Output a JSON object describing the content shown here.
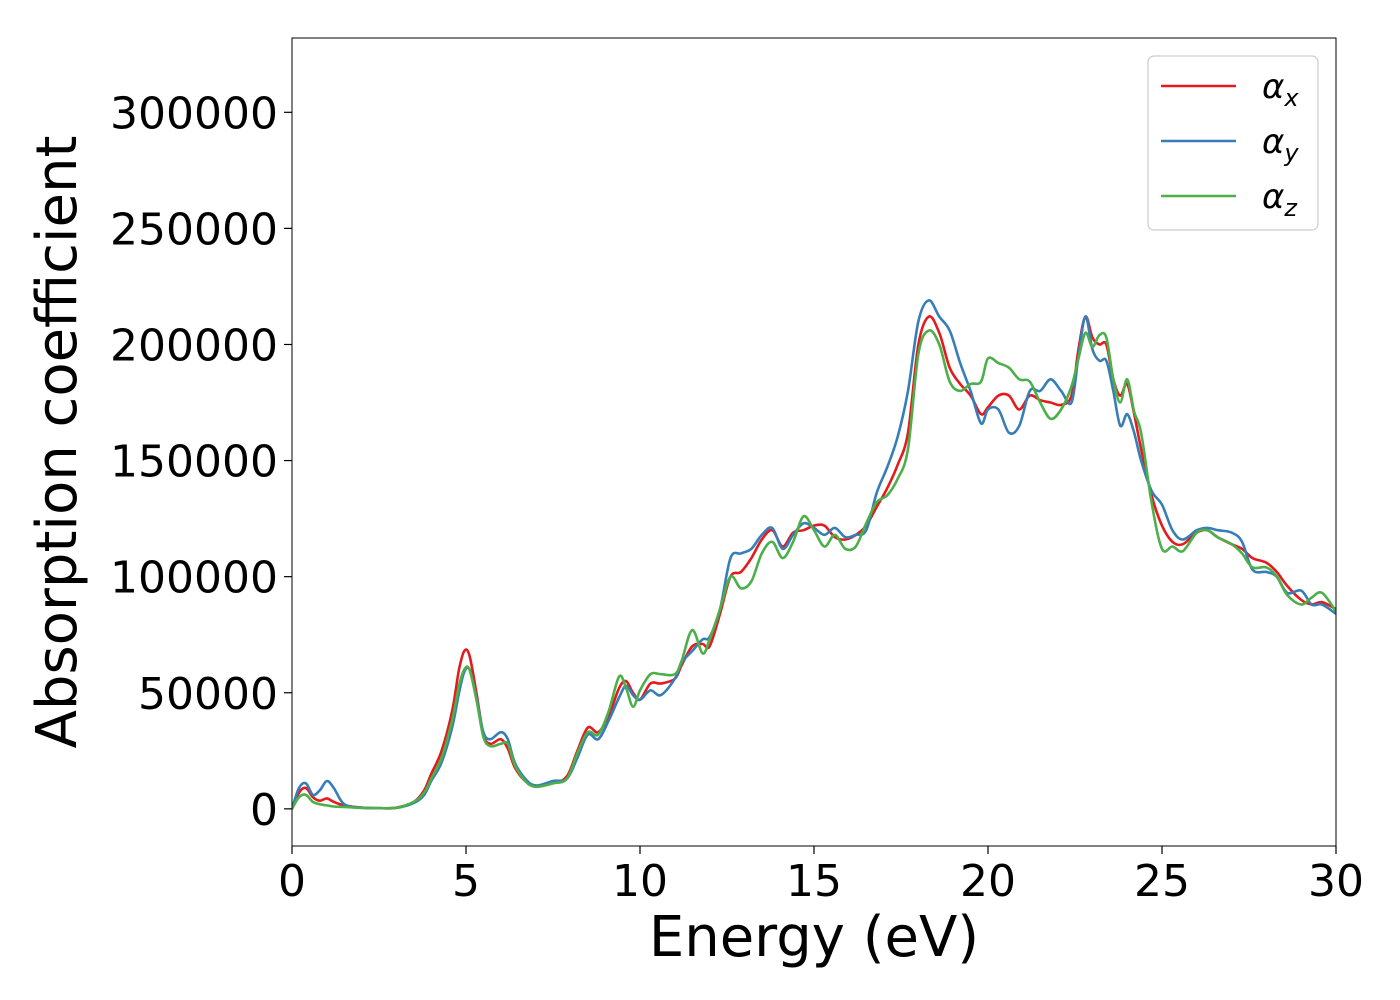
{
  "chart_data": {
    "type": "line",
    "xlabel": "Energy (eV)",
    "ylabel": "Absorption coefficient",
    "xlim": [
      0,
      30
    ],
    "ylim": [
      -16000,
      332000
    ],
    "xticks": [
      0,
      5,
      10,
      15,
      20,
      25,
      30
    ],
    "xtick_labels": [
      "0",
      "5",
      "10",
      "15",
      "20",
      "25",
      "30"
    ],
    "yticks": [
      0,
      50000,
      100000,
      150000,
      200000,
      250000,
      300000
    ],
    "ytick_labels": [
      "0",
      "50000",
      "100000",
      "150000",
      "200000",
      "250000",
      "300000"
    ],
    "grid": false,
    "legend_position": "top-right",
    "series": [
      {
        "name": "α_x",
        "legend_base": "α",
        "legend_sub": "x",
        "color": "#e41a1c",
        "x": [
          0,
          0.2,
          0.4,
          0.6,
          0.8,
          1.0,
          1.2,
          1.5,
          2.0,
          2.5,
          3.0,
          3.5,
          3.8,
          4.0,
          4.3,
          4.6,
          4.8,
          4.95,
          5.1,
          5.3,
          5.5,
          5.7,
          6.0,
          6.2,
          6.4,
          6.7,
          7.0,
          7.5,
          7.9,
          8.2,
          8.5,
          8.8,
          9.1,
          9.4,
          9.6,
          9.8,
          10.0,
          10.3,
          10.6,
          11.0,
          11.2,
          11.5,
          11.8,
          12.0,
          12.3,
          12.6,
          12.9,
          13.2,
          13.5,
          13.8,
          14.1,
          14.4,
          14.7,
          15.0,
          15.3,
          15.6,
          15.9,
          16.2,
          16.5,
          16.8,
          17.1,
          17.4,
          17.7,
          18.0,
          18.3,
          18.6,
          18.9,
          19.2,
          19.5,
          19.8,
          20.0,
          20.3,
          20.6,
          20.9,
          21.2,
          21.5,
          21.8,
          22.1,
          22.4,
          22.6,
          22.8,
          23.0,
          23.2,
          23.4,
          23.6,
          23.8,
          24.0,
          24.2,
          24.4,
          24.7,
          25.0,
          25.3,
          25.6,
          26.0,
          26.3,
          26.6,
          27.0,
          27.3,
          27.6,
          28.0,
          28.3,
          28.6,
          29.0,
          29.3,
          29.6,
          30.0
        ],
        "y": [
          0,
          7000,
          9000,
          5000,
          3500,
          4500,
          3000,
          1500,
          500,
          300,
          500,
          3000,
          8000,
          15000,
          25000,
          42000,
          60000,
          68000,
          66000,
          50000,
          32000,
          28000,
          30000,
          26000,
          18000,
          12000,
          10000,
          11000,
          14000,
          25000,
          35000,
          33000,
          40000,
          52000,
          55000,
          50000,
          47000,
          54000,
          54000,
          56000,
          62000,
          70000,
          71000,
          70000,
          84000,
          100000,
          102000,
          108000,
          116000,
          120000,
          113000,
          119000,
          120000,
          122000,
          122000,
          117000,
          116000,
          118000,
          122000,
          130000,
          138000,
          148000,
          162000,
          200000,
          212000,
          205000,
          190000,
          183000,
          178000,
          170000,
          173000,
          178000,
          178000,
          172000,
          178000,
          176000,
          175000,
          174000,
          178000,
          198000,
          212000,
          203000,
          200000,
          200000,
          185000,
          178000,
          183000,
          170000,
          155000,
          135000,
          122000,
          115000,
          114000,
          119000,
          120000,
          117000,
          114000,
          112000,
          108000,
          106000,
          102000,
          96000,
          90000,
          88000,
          89000,
          86000
        ]
      },
      {
        "name": "α_y",
        "legend_base": "α",
        "legend_sub": "y",
        "color": "#377eb8",
        "x": [
          0,
          0.2,
          0.4,
          0.6,
          0.8,
          1.0,
          1.2,
          1.5,
          2.0,
          2.5,
          3.0,
          3.5,
          3.8,
          4.0,
          4.3,
          4.6,
          4.8,
          4.95,
          5.1,
          5.3,
          5.5,
          5.7,
          6.0,
          6.2,
          6.4,
          6.7,
          7.0,
          7.5,
          7.9,
          8.2,
          8.5,
          8.8,
          9.1,
          9.4,
          9.6,
          9.8,
          10.0,
          10.3,
          10.6,
          11.0,
          11.2,
          11.5,
          11.8,
          12.0,
          12.3,
          12.6,
          12.9,
          13.2,
          13.5,
          13.8,
          14.1,
          14.4,
          14.7,
          15.0,
          15.3,
          15.6,
          15.9,
          16.2,
          16.5,
          16.8,
          17.1,
          17.4,
          17.7,
          18.0,
          18.3,
          18.6,
          18.9,
          19.2,
          19.5,
          19.8,
          20.0,
          20.3,
          20.6,
          20.9,
          21.2,
          21.5,
          21.8,
          22.1,
          22.4,
          22.6,
          22.8,
          23.0,
          23.2,
          23.4,
          23.6,
          23.8,
          24.0,
          24.2,
          24.4,
          24.7,
          25.0,
          25.3,
          25.6,
          26.0,
          26.3,
          26.6,
          27.0,
          27.3,
          27.6,
          28.0,
          28.3,
          28.6,
          29.0,
          29.3,
          29.6,
          30.0
        ],
        "y": [
          0,
          9000,
          11000,
          6000,
          8000,
          12000,
          9000,
          2000,
          600,
          300,
          400,
          2500,
          6000,
          12000,
          20000,
          35000,
          50000,
          59000,
          60000,
          48000,
          33000,
          30000,
          33000,
          30000,
          20000,
          13000,
          10000,
          12000,
          13000,
          22000,
          32000,
          30000,
          38000,
          48000,
          53000,
          49000,
          47000,
          51000,
          49000,
          56000,
          63000,
          68000,
          73000,
          74000,
          86000,
          108000,
          110000,
          112000,
          118000,
          121000,
          112000,
          118000,
          123000,
          121000,
          118000,
          121000,
          117000,
          118000,
          120000,
          136000,
          147000,
          160000,
          180000,
          210000,
          219000,
          212000,
          206000,
          192000,
          180000,
          166000,
          172000,
          172000,
          162000,
          165000,
          180000,
          180000,
          185000,
          180000,
          175000,
          195000,
          212000,
          198000,
          193000,
          193000,
          180000,
          165000,
          170000,
          162000,
          150000,
          137000,
          131000,
          120000,
          116000,
          120000,
          121000,
          120000,
          119000,
          115000,
          103000,
          102000,
          100000,
          93000,
          94000,
          88000,
          88000,
          84000
        ]
      },
      {
        "name": "α_z",
        "legend_base": "α",
        "legend_sub": "z",
        "color": "#4daf4a",
        "x": [
          0,
          0.2,
          0.4,
          0.6,
          0.8,
          1.0,
          1.2,
          1.5,
          2.0,
          2.5,
          3.0,
          3.5,
          3.8,
          4.0,
          4.3,
          4.6,
          4.8,
          4.95,
          5.1,
          5.3,
          5.5,
          5.7,
          6.0,
          6.2,
          6.4,
          6.7,
          7.0,
          7.5,
          7.9,
          8.2,
          8.5,
          8.8,
          9.1,
          9.4,
          9.6,
          9.8,
          10.0,
          10.3,
          10.6,
          11.0,
          11.2,
          11.5,
          11.8,
          12.0,
          12.3,
          12.6,
          12.9,
          13.2,
          13.5,
          13.8,
          14.1,
          14.4,
          14.7,
          15.0,
          15.3,
          15.6,
          15.9,
          16.2,
          16.5,
          16.8,
          17.1,
          17.4,
          17.7,
          18.0,
          18.3,
          18.6,
          18.9,
          19.2,
          19.5,
          19.8,
          20.0,
          20.3,
          20.6,
          20.9,
          21.2,
          21.5,
          21.8,
          22.1,
          22.4,
          22.6,
          22.8,
          23.0,
          23.2,
          23.4,
          23.6,
          23.8,
          24.0,
          24.2,
          24.4,
          24.7,
          25.0,
          25.3,
          25.6,
          26.0,
          26.3,
          26.6,
          27.0,
          27.3,
          27.6,
          28.0,
          28.3,
          28.6,
          29.0,
          29.3,
          29.6,
          30.0
        ],
        "y": [
          0,
          5000,
          6000,
          3000,
          2000,
          1500,
          1000,
          800,
          400,
          300,
          500,
          3000,
          7000,
          13000,
          22000,
          38000,
          53000,
          60000,
          60000,
          47000,
          31000,
          27000,
          28000,
          28000,
          19000,
          12000,
          9500,
          11000,
          13000,
          24000,
          33000,
          32000,
          42000,
          57000,
          52000,
          44000,
          51000,
          58000,
          58000,
          58000,
          64000,
          77000,
          67000,
          73000,
          86000,
          100000,
          95000,
          98000,
          110000,
          115000,
          108000,
          115000,
          126000,
          120000,
          113000,
          118000,
          112000,
          113000,
          123000,
          132000,
          135000,
          142000,
          155000,
          196000,
          206000,
          200000,
          184000,
          180000,
          183000,
          184000,
          194000,
          192000,
          190000,
          185000,
          184000,
          175000,
          168000,
          172000,
          182000,
          194000,
          205000,
          199000,
          204000,
          203000,
          185000,
          175000,
          185000,
          171000,
          162000,
          132000,
          112000,
          113000,
          111000,
          119000,
          120000,
          117000,
          114000,
          110000,
          104000,
          104000,
          100000,
          92000,
          88000,
          91000,
          93000,
          85000
        ]
      }
    ]
  }
}
